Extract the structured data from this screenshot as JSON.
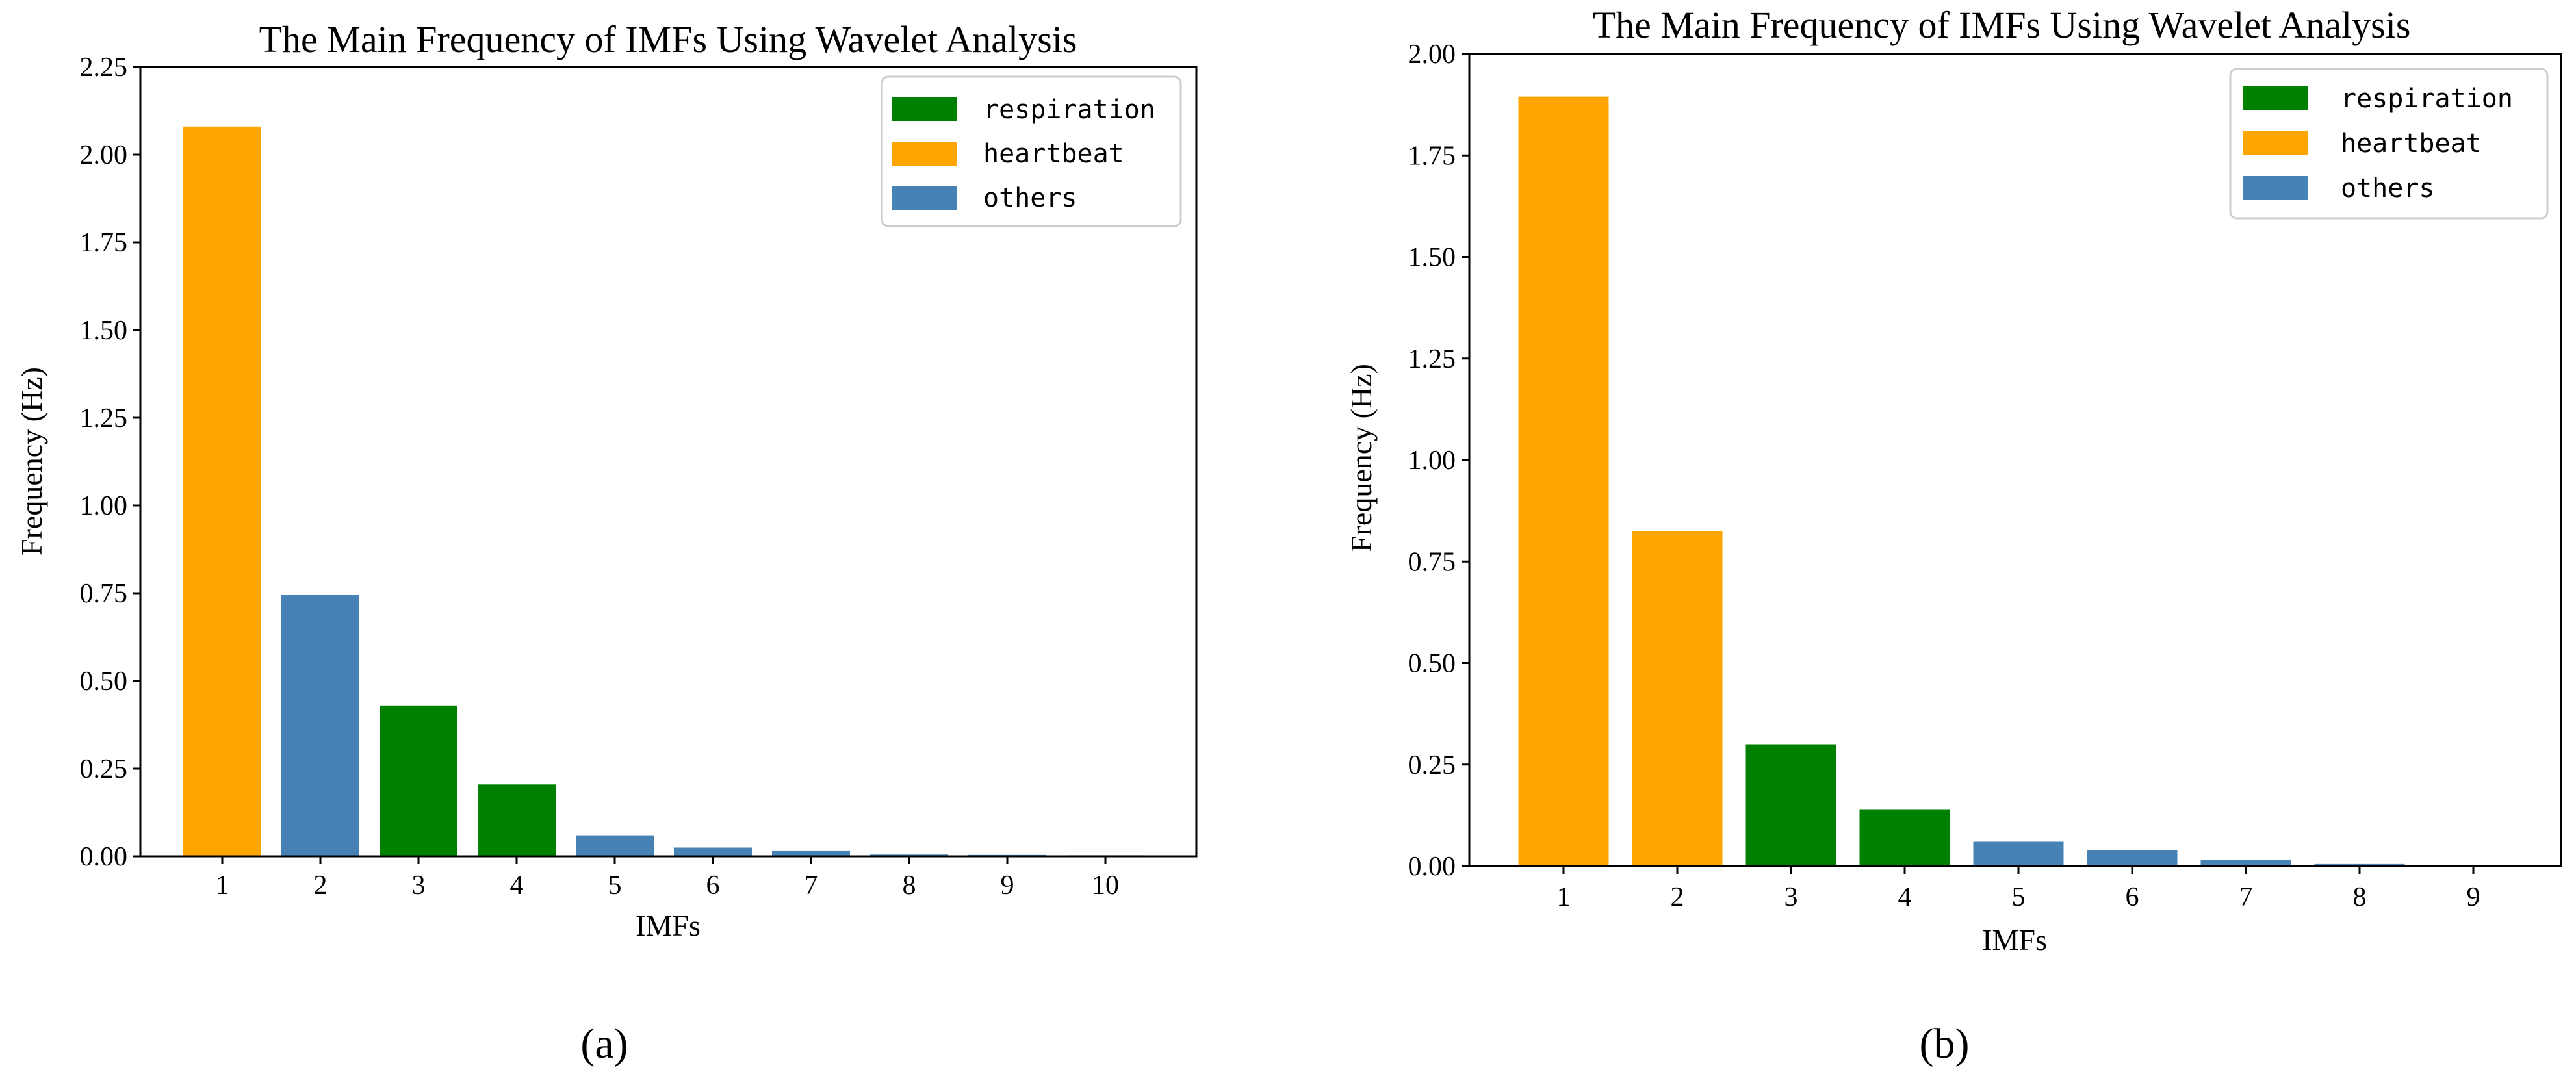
{
  "colors": {
    "respiration": "#008000",
    "heartbeat": "#FFA500",
    "others": "#4682B4",
    "axis": "#000000",
    "legend_border": "#cccccc"
  },
  "chart_data": [
    {
      "type": "bar",
      "panel_label": "(a)",
      "title": "The Main Frequency of IMFs Using Wavelet Analysis",
      "xlabel": "IMFs",
      "ylabel": "Frequency (Hz)",
      "ylim": [
        0,
        2.25
      ],
      "yticks": [
        "0.00",
        "0.25",
        "0.50",
        "0.75",
        "1.00",
        "1.25",
        "1.50",
        "1.75",
        "2.00",
        "2.25"
      ],
      "categories": [
        "1",
        "2",
        "3",
        "4",
        "5",
        "6",
        "7",
        "8",
        "9",
        "10"
      ],
      "values": [
        2.08,
        0.745,
        0.43,
        0.205,
        0.06,
        0.025,
        0.015,
        0.005,
        0.004,
        0.003
      ],
      "classes": [
        "heartbeat",
        "others",
        "respiration",
        "respiration",
        "others",
        "others",
        "others",
        "others",
        "others",
        "others"
      ],
      "legend": [
        "respiration",
        "heartbeat",
        "others"
      ],
      "legend_position": "top-right",
      "grid": false
    },
    {
      "type": "bar",
      "panel_label": "(b)",
      "title": "The Main Frequency of IMFs Using Wavelet Analysis",
      "xlabel": "IMFs",
      "ylabel": "Frequency (Hz)",
      "ylim": [
        0,
        2.0
      ],
      "yticks": [
        "0.00",
        "0.25",
        "0.50",
        "0.75",
        "1.00",
        "1.25",
        "1.50",
        "1.75",
        "2.00"
      ],
      "categories": [
        "1",
        "2",
        "3",
        "4",
        "5",
        "6",
        "7",
        "8",
        "9"
      ],
      "values": [
        1.895,
        0.825,
        0.3,
        0.14,
        0.06,
        0.04,
        0.015,
        0.005,
        0.003
      ],
      "classes": [
        "heartbeat",
        "heartbeat",
        "respiration",
        "respiration",
        "others",
        "others",
        "others",
        "others",
        "others"
      ],
      "legend": [
        "respiration",
        "heartbeat",
        "others"
      ],
      "legend_position": "top-right",
      "grid": false
    }
  ]
}
